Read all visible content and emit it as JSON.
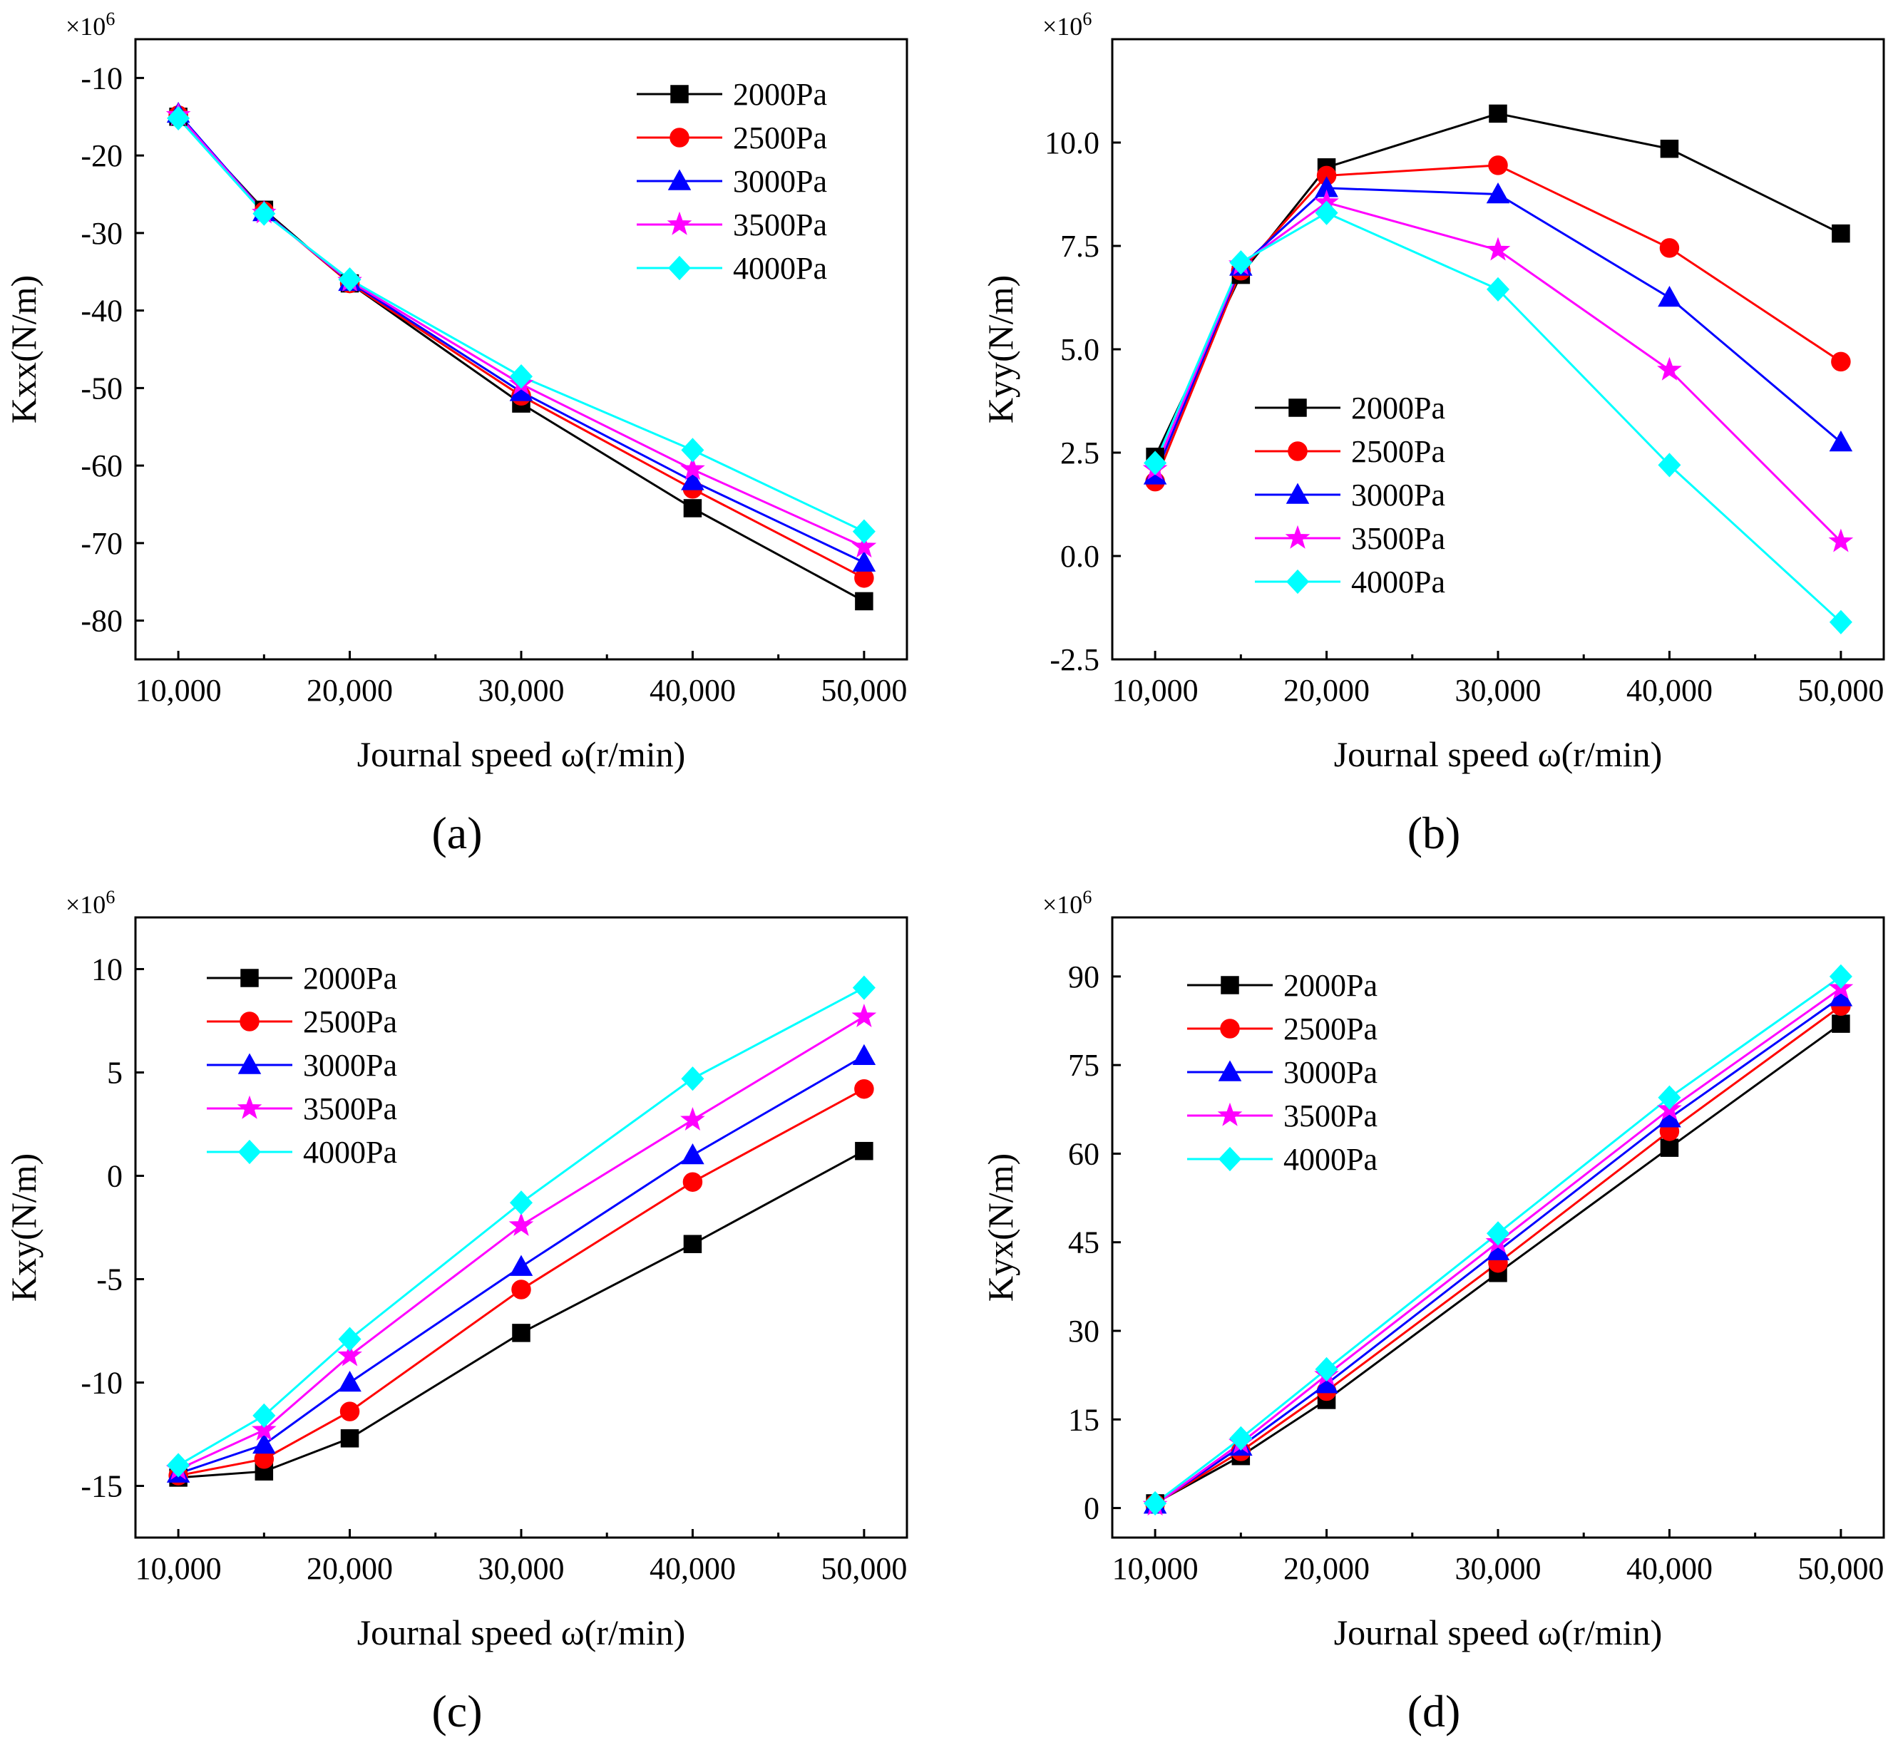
{
  "figure_title": "",
  "series_styles": [
    {
      "name": "2000Pa",
      "color": "#000000",
      "marker": "square"
    },
    {
      "name": "2500Pa",
      "color": "#ff0000",
      "marker": "circle"
    },
    {
      "name": "3000Pa",
      "color": "#0000ff",
      "marker": "triangle"
    },
    {
      "name": "3500Pa",
      "color": "#ff00ff",
      "marker": "star"
    },
    {
      "name": "4000Pa",
      "color": "#00ffff",
      "marker": "diamond"
    }
  ],
  "chart_data": [
    {
      "id": "a",
      "panel_label": "(a)",
      "type": "line",
      "title": "",
      "xlabel": "Journal speed ω(r/min)",
      "ylabel": "Kxx(N/m)",
      "multiplier": "×10",
      "multiplier_exp": "6",
      "x": [
        10000,
        15000,
        20000,
        30000,
        40000,
        50000
      ],
      "xlim": [
        7500,
        52500
      ],
      "xticks": [
        10000,
        20000,
        30000,
        40000,
        50000
      ],
      "xtick_labels": [
        "10,000",
        "20,000",
        "30,000",
        "40,000",
        "50,000"
      ],
      "ylim": [
        -85,
        -5
      ],
      "yticks": [
        -80,
        -70,
        -60,
        -50,
        -40,
        -30,
        -20,
        -10
      ],
      "ytick_labels": [
        "-80",
        "-70",
        "-60",
        "-50",
        "-40",
        "-30",
        "-20",
        "-10"
      ],
      "legend_position": "top-right",
      "series": [
        {
          "name": "2000Pa",
          "values": [
            -15.0,
            -27.0,
            -36.5,
            -52.0,
            -65.5,
            -77.5
          ]
        },
        {
          "name": "2500Pa",
          "values": [
            -14.8,
            -27.2,
            -36.5,
            -51.0,
            -63.0,
            -74.5
          ]
        },
        {
          "name": "3000Pa",
          "values": [
            -14.6,
            -27.3,
            -36.3,
            -50.5,
            -62.0,
            -72.5
          ]
        },
        {
          "name": "3500Pa",
          "values": [
            -14.8,
            -27.4,
            -36.2,
            -49.5,
            -60.5,
            -70.5
          ]
        },
        {
          "name": "4000Pa",
          "values": [
            -15.2,
            -27.5,
            -36.0,
            -48.5,
            -58.0,
            -68.5
          ]
        }
      ]
    },
    {
      "id": "b",
      "panel_label": "(b)",
      "type": "line",
      "title": "",
      "xlabel": "Journal speed ω(r/min)",
      "ylabel": "Kyy(N/m)",
      "multiplier": "×10",
      "multiplier_exp": "6",
      "x": [
        10000,
        15000,
        20000,
        30000,
        40000,
        50000
      ],
      "xlim": [
        7500,
        52500
      ],
      "xticks": [
        10000,
        20000,
        30000,
        40000,
        50000
      ],
      "xtick_labels": [
        "10,000",
        "20,000",
        "30,000",
        "40,000",
        "50,000"
      ],
      "ylim": [
        -2.5,
        12.5
      ],
      "yticks": [
        -2.5,
        0,
        2.5,
        5,
        7.5,
        10
      ],
      "ytick_labels": [
        "-2.5",
        "0.0",
        "2.5",
        "5.0",
        "7.5",
        "10.0"
      ],
      "legend_position": "bottom-left",
      "series": [
        {
          "name": "2000Pa",
          "values": [
            2.4,
            6.8,
            9.4,
            10.7,
            9.85,
            7.8
          ]
        },
        {
          "name": "2500Pa",
          "values": [
            1.8,
            6.9,
            9.2,
            9.45,
            7.45,
            4.7
          ]
        },
        {
          "name": "3000Pa",
          "values": [
            1.95,
            7.0,
            8.9,
            8.75,
            6.25,
            2.75
          ]
        },
        {
          "name": "3500Pa",
          "values": [
            2.1,
            7.05,
            8.55,
            7.4,
            4.5,
            0.35
          ]
        },
        {
          "name": "4000Pa",
          "values": [
            2.25,
            7.1,
            8.3,
            6.45,
            2.2,
            -1.6
          ]
        }
      ]
    },
    {
      "id": "c",
      "panel_label": "(c)",
      "type": "line",
      "title": "",
      "xlabel": "Journal speed ω(r/min)",
      "ylabel": "Kxy(N/m)",
      "multiplier": "×10",
      "multiplier_exp": "6",
      "x": [
        10000,
        15000,
        20000,
        30000,
        40000,
        50000
      ],
      "xlim": [
        7500,
        52500
      ],
      "xticks": [
        10000,
        20000,
        30000,
        40000,
        50000
      ],
      "xtick_labels": [
        "10,000",
        "20,000",
        "30,000",
        "40,000",
        "50,000"
      ],
      "ylim": [
        -17.5,
        12.5
      ],
      "yticks": [
        -15,
        -10,
        -5,
        0,
        5,
        10
      ],
      "ytick_labels": [
        "-15",
        "-10",
        "-5",
        "0",
        "5",
        "10"
      ],
      "legend_position": "top-left",
      "series": [
        {
          "name": "2000Pa",
          "values": [
            -14.6,
            -14.3,
            -12.7,
            -7.6,
            -3.3,
            1.2
          ]
        },
        {
          "name": "2500Pa",
          "values": [
            -14.5,
            -13.7,
            -11.4,
            -5.5,
            -0.3,
            4.2
          ]
        },
        {
          "name": "3000Pa",
          "values": [
            -14.4,
            -13.0,
            -10.0,
            -4.4,
            1.0,
            5.8
          ]
        },
        {
          "name": "3500Pa",
          "values": [
            -14.2,
            -12.3,
            -8.7,
            -2.4,
            2.7,
            7.7
          ]
        },
        {
          "name": "4000Pa",
          "values": [
            -14.0,
            -11.6,
            -7.9,
            -1.3,
            4.7,
            9.1
          ]
        }
      ]
    },
    {
      "id": "d",
      "panel_label": "(d)",
      "type": "line",
      "title": "",
      "xlabel": "Journal speed ω(r/min)",
      "ylabel": "Kyx(N/m)",
      "multiplier": "×10",
      "multiplier_exp": "6",
      "x": [
        10000,
        15000,
        20000,
        30000,
        40000,
        50000
      ],
      "xlim": [
        7500,
        52500
      ],
      "xticks": [
        10000,
        20000,
        30000,
        40000,
        50000
      ],
      "xtick_labels": [
        "10,000",
        "20,000",
        "30,000",
        "40,000",
        "50,000"
      ],
      "ylim": [
        -5,
        100
      ],
      "yticks": [
        0,
        15,
        30,
        45,
        60,
        75,
        90
      ],
      "ytick_labels": [
        "0",
        "15",
        "30",
        "45",
        "60",
        "75",
        "90"
      ],
      "legend_position": "top-left",
      "series": [
        {
          "name": "2000Pa",
          "values": [
            0.8,
            8.8,
            18.3,
            39.8,
            61.0,
            82.0
          ]
        },
        {
          "name": "2500Pa",
          "values": [
            0.7,
            9.6,
            19.8,
            41.5,
            63.8,
            85.0
          ]
        },
        {
          "name": "3000Pa",
          "values": [
            0.6,
            10.4,
            21.0,
            43.5,
            66.0,
            86.5
          ]
        },
        {
          "name": "3500Pa",
          "values": [
            0.5,
            11.0,
            22.5,
            45.0,
            67.5,
            88.0
          ]
        },
        {
          "name": "4000Pa",
          "values": [
            0.8,
            11.8,
            23.5,
            46.5,
            69.5,
            90.0
          ]
        }
      ]
    }
  ]
}
